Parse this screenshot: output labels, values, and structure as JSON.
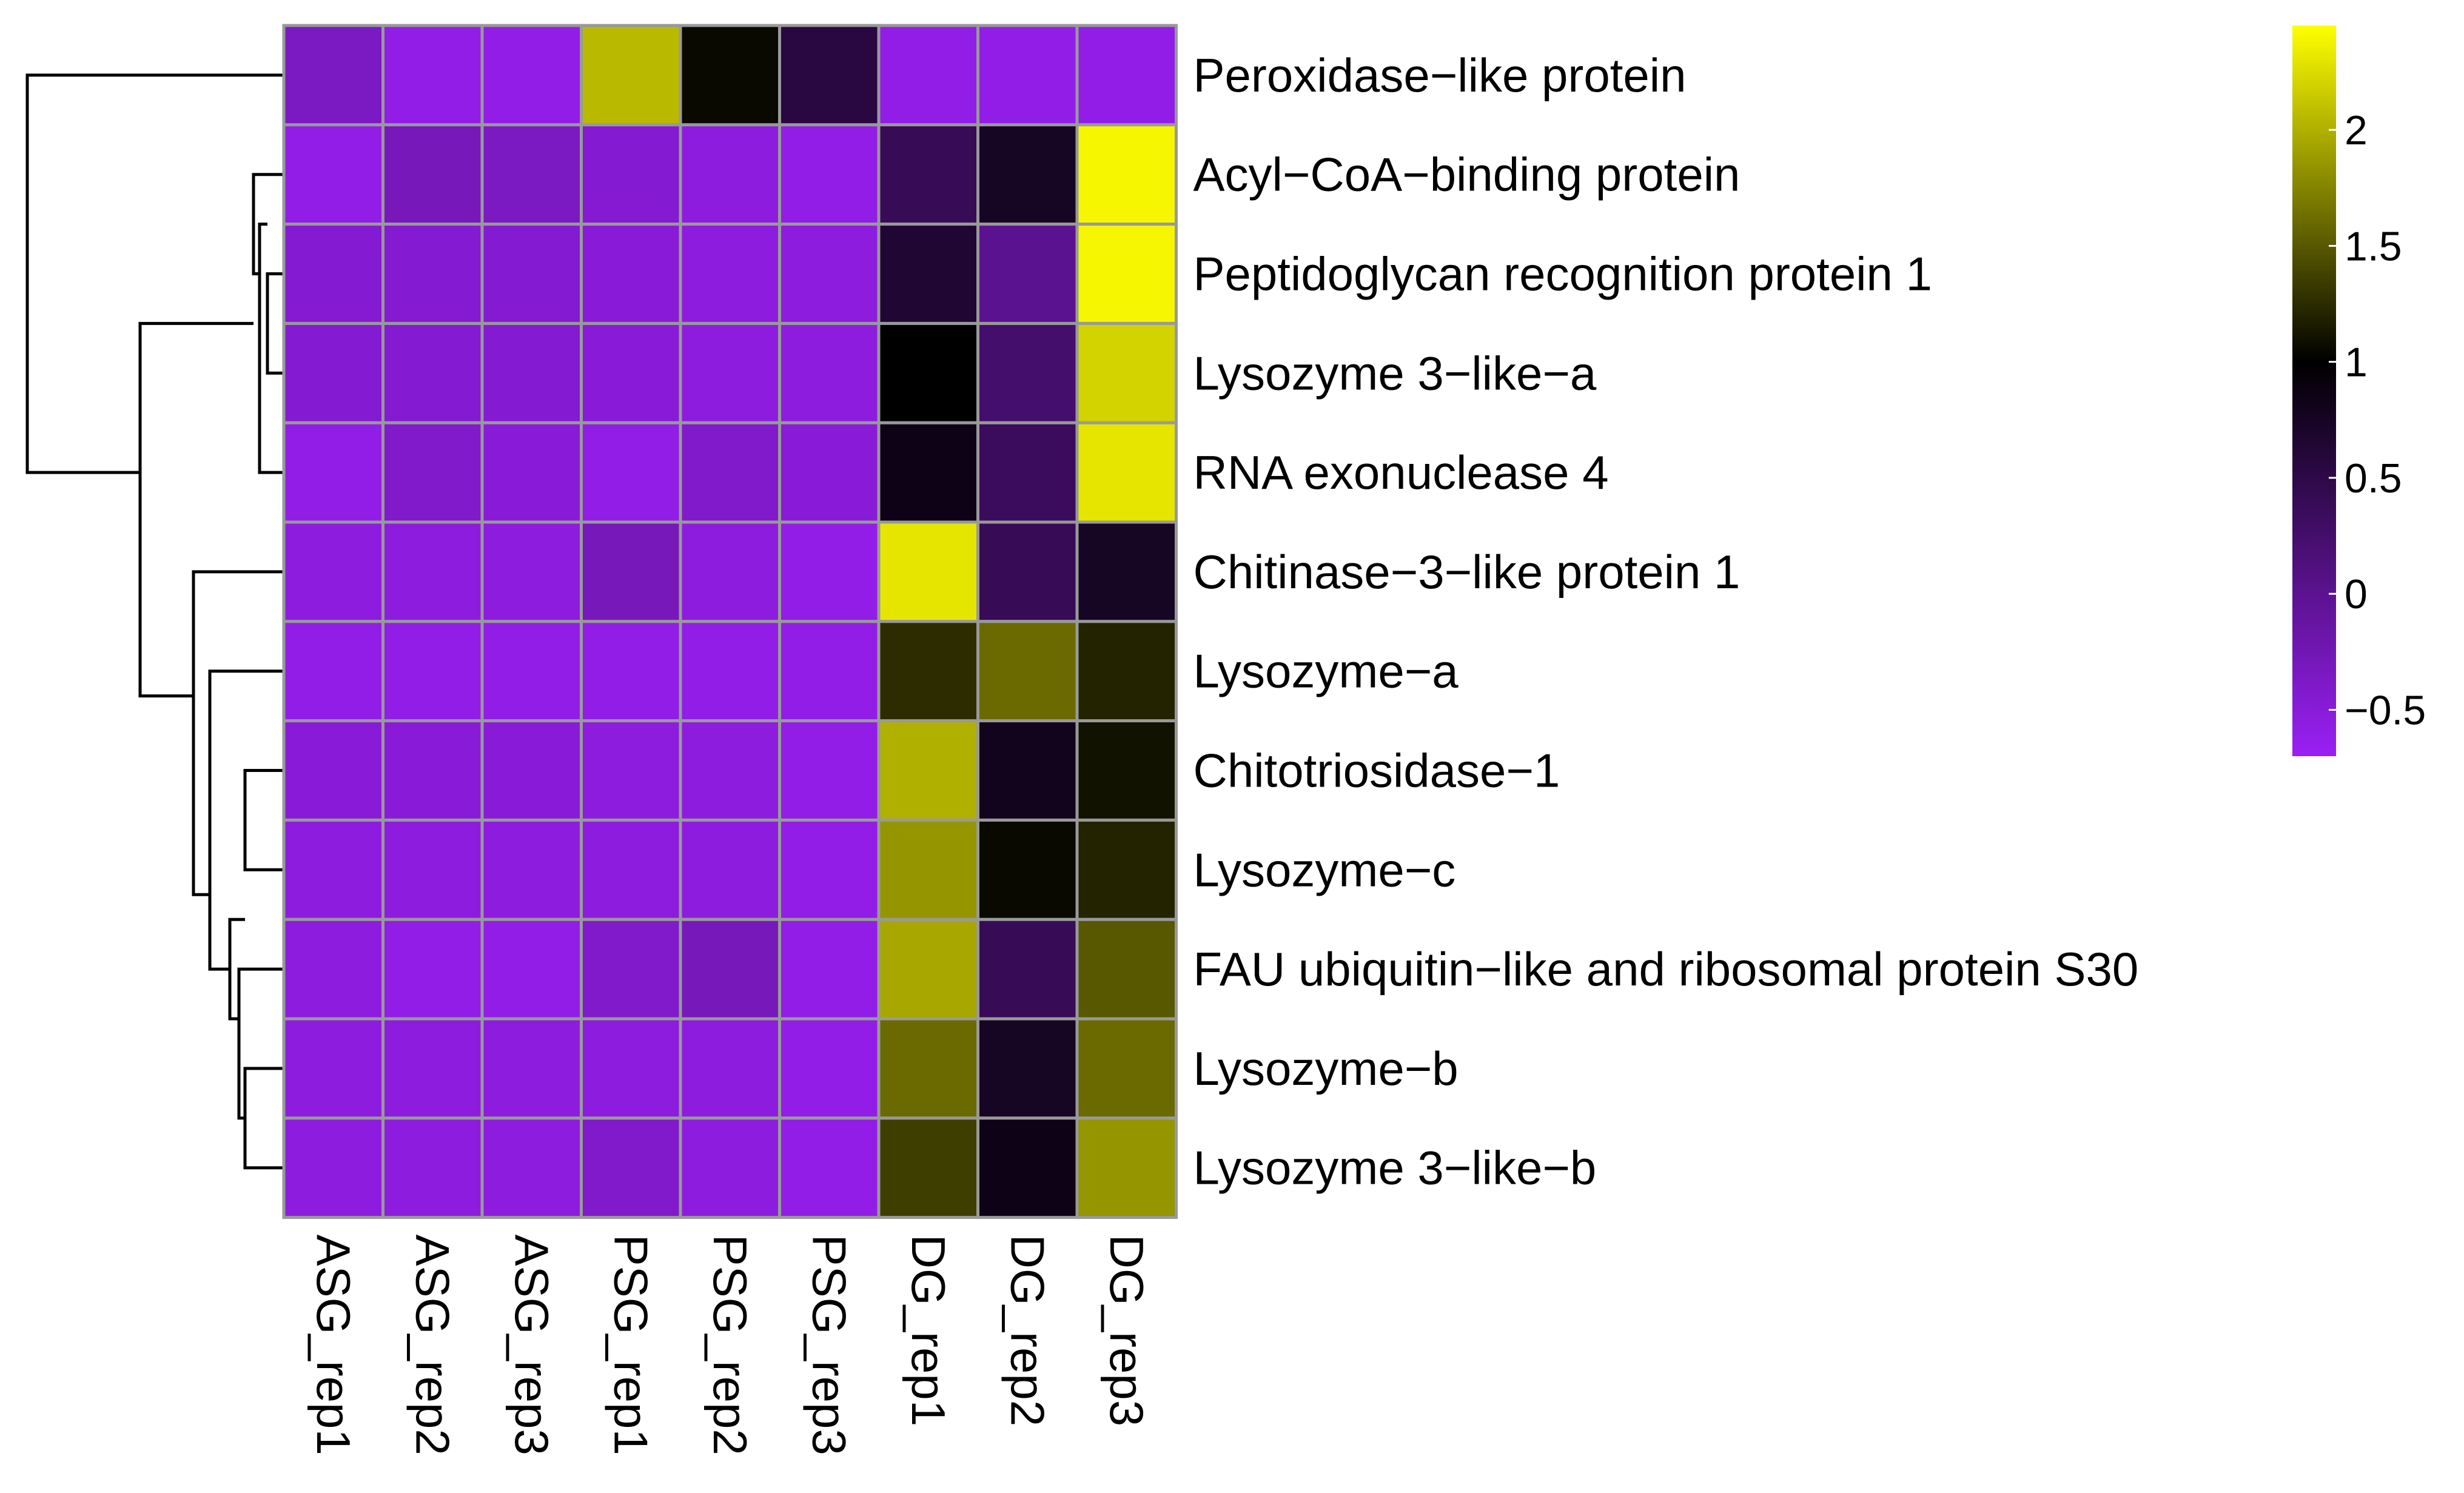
{
  "chart_data": {
    "type": "heatmap",
    "title": "",
    "rows": [
      "Peroxidase−like protein",
      "Acyl−CoA−binding protein",
      "Peptidoglycan recognition protein 1",
      "Lysozyme 3−like−a",
      "RNA exonuclease 4",
      "Chitinase−3−like protein 1",
      "Lysozyme−a",
      "Chitotriosidase−1",
      "Lysozyme−c",
      "FAU ubiquitin−like and ribosomal protein S30",
      "Lysozyme−b",
      "Lysozyme 3−like−b"
    ],
    "columns": [
      "ASG_rep1",
      "ASG_rep2",
      "ASG_rep3",
      "PSG_rep1",
      "PSG_rep2",
      "PSG_rep3",
      "DG_rep1",
      "DG_rep2",
      "DG_rep3"
    ],
    "values": [
      [
        -0.35,
        -0.6,
        -0.6,
        2.05,
        1.05,
        0.55,
        -0.6,
        -0.6,
        -0.6
      ],
      [
        -0.6,
        -0.3,
        -0.35,
        -0.45,
        -0.55,
        -0.6,
        0.4,
        0.75,
        2.4
      ],
      [
        -0.45,
        -0.45,
        -0.45,
        -0.5,
        -0.55,
        -0.55,
        0.65,
        0.0,
        2.4
      ],
      [
        -0.45,
        -0.45,
        -0.45,
        -0.5,
        -0.55,
        -0.55,
        1.0,
        0.25,
        2.2
      ],
      [
        -0.6,
        -0.4,
        -0.5,
        -0.6,
        -0.4,
        -0.5,
        0.85,
        0.35,
        2.3
      ],
      [
        -0.55,
        -0.55,
        -0.55,
        -0.3,
        -0.55,
        -0.6,
        2.3,
        0.4,
        0.75
      ],
      [
        -0.6,
        -0.6,
        -0.6,
        -0.6,
        -0.6,
        -0.6,
        1.25,
        1.6,
        1.2
      ],
      [
        -0.5,
        -0.5,
        -0.5,
        -0.55,
        -0.55,
        -0.6,
        2.0,
        0.8,
        1.1
      ],
      [
        -0.55,
        -0.55,
        -0.55,
        -0.55,
        -0.55,
        -0.6,
        1.85,
        1.05,
        1.2
      ],
      [
        -0.55,
        -0.6,
        -0.6,
        -0.4,
        -0.3,
        -0.6,
        1.95,
        0.4,
        1.5
      ],
      [
        -0.55,
        -0.55,
        -0.55,
        -0.55,
        -0.55,
        -0.6,
        1.6,
        0.75,
        1.6
      ],
      [
        -0.55,
        -0.55,
        -0.55,
        -0.4,
        -0.55,
        -0.6,
        1.35,
        0.85,
        1.85
      ]
    ],
    "color_scale": {
      "min": -0.7,
      "max": 2.45,
      "stops": [
        {
          "value": -0.7,
          "color": "#9b1ff5"
        },
        {
          "value": 1.0,
          "color": "#000000"
        },
        {
          "value": 2.45,
          "color": "#ffff00"
        }
      ]
    },
    "legend": {
      "position": "right",
      "ticks": [
        2,
        1.5,
        1,
        0.5,
        0,
        -0.5
      ],
      "tick_labels": [
        "2",
        "1.5",
        "1",
        "0.5",
        "0",
        "−0.5"
      ]
    },
    "row_dendrogram": "left",
    "cell_border_color": "#999999"
  }
}
